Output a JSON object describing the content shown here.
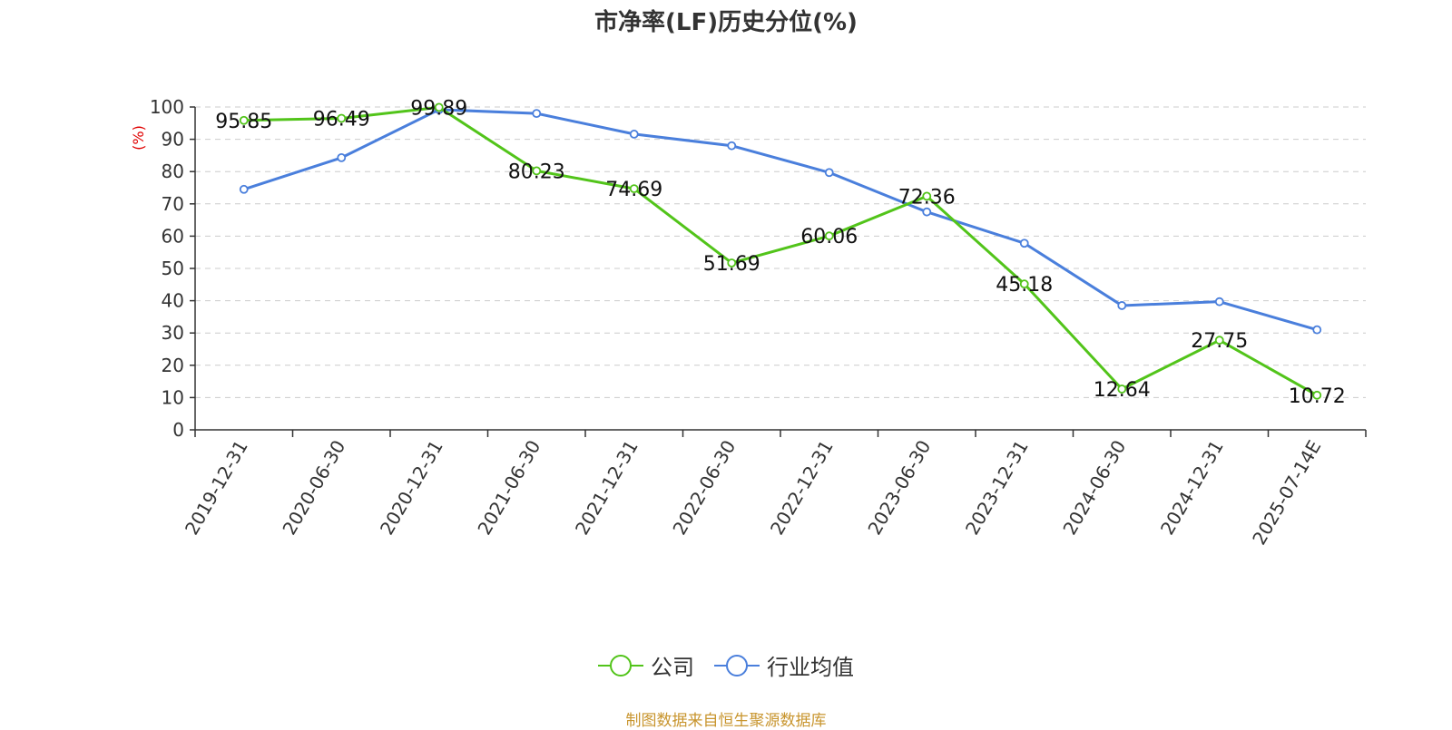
{
  "title": "市净率(LF)历史分位(%)",
  "source": "制图数据来自恒生聚源数据库",
  "colors": {
    "company": "#52c41a",
    "industry": "#4a7fdc",
    "grid": "#cccccc",
    "axis": "#333333",
    "unit": "#e00000",
    "source": "#c8952e"
  },
  "chart_data": {
    "type": "line",
    "title": "市净率(LF)历史分位(%)",
    "ylabel": "(%)",
    "xlabel": "",
    "categories": [
      "2019-12-31",
      "2020-06-30",
      "2020-12-31",
      "2021-06-30",
      "2021-12-31",
      "2022-06-30",
      "2022-12-31",
      "2023-06-30",
      "2023-12-31",
      "2024-06-30",
      "2024-12-31",
      "2025-07-14E"
    ],
    "ylim": [
      0,
      100
    ],
    "yticks": [
      "0",
      "10",
      "20",
      "30",
      "40",
      "50",
      "60",
      "70",
      "80",
      "90",
      "100"
    ],
    "grid": true,
    "legend_position": "bottom",
    "series": [
      {
        "name": "公司",
        "color": "#52c41a",
        "values": [
          95.85,
          96.49,
          99.89,
          80.23,
          74.69,
          51.69,
          60.06,
          72.36,
          45.18,
          12.64,
          27.75,
          10.72
        ],
        "labels": [
          "95.85",
          "96.49",
          "99.89",
          "80.23",
          "74.69",
          "51.69",
          "60.06",
          "72.36",
          "45.18",
          "12.64",
          "27.75",
          "10.72"
        ]
      },
      {
        "name": "行业均值",
        "color": "#4a7fdc",
        "values": [
          74.5,
          84.3,
          99.2,
          98.0,
          91.6,
          88.0,
          79.7,
          67.5,
          57.8,
          38.5,
          39.7,
          31.0
        ]
      }
    ]
  }
}
